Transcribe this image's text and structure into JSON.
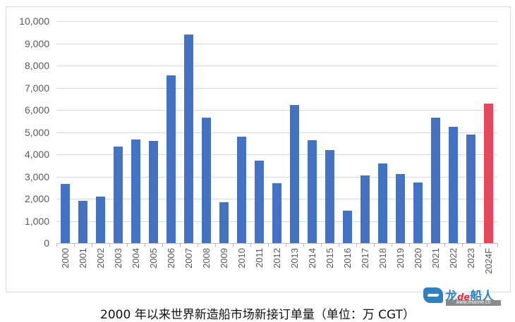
{
  "chart_data": {
    "type": "bar",
    "title": "2000 年以来世界新造船市场新接订单量（单位：万 CGT）",
    "xlabel": "",
    "ylabel": "",
    "ylim": [
      0,
      10000
    ],
    "yticks": [
      "0",
      "1,000",
      "2,000",
      "3,000",
      "4,000",
      "5,000",
      "6,000",
      "7,000",
      "8,000",
      "9,000",
      "10,000"
    ],
    "grid": true,
    "legend": "none",
    "categories": [
      "2000",
      "2001",
      "2002",
      "2003",
      "2004",
      "2005",
      "2006",
      "2007",
      "2008",
      "2009",
      "2010",
      "2011",
      "2012",
      "2013",
      "2014",
      "2015",
      "2016",
      "2017",
      "2018",
      "2019",
      "2020",
      "2021",
      "2022",
      "2023",
      "2024F"
    ],
    "values": [
      2670,
      1900,
      2100,
      4350,
      4670,
      4600,
      7550,
      9400,
      5650,
      1830,
      4800,
      3700,
      2700,
      6230,
      4620,
      4200,
      1450,
      3060,
      3600,
      3120,
      2730,
      5650,
      5250,
      4880,
      6300
    ],
    "colors": {
      "actual": "#4472c4",
      "forecast": "#e5475e"
    },
    "highlight_category": "2024F"
  },
  "caption": "2000 年以来世界新造船市场新接订单量（单位：万 CGT）",
  "watermark": {
    "name_part1": "龙",
    "name_part2": "de",
    "name_part3": "船人",
    "url": "www.imarine.cn"
  }
}
